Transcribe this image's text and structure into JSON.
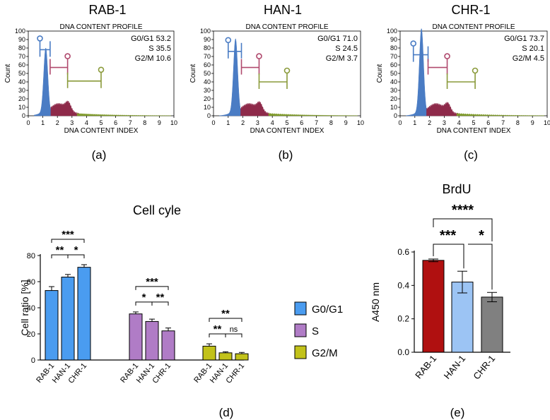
{
  "figure": {
    "labels": {
      "a": "(a)",
      "b": "(b)",
      "c": "(c)",
      "d": "(d)",
      "e": "(e)"
    },
    "colors": {
      "g0g1": "#4a7cc4",
      "s": "#8e2a4a",
      "g2m": "#7f9a2a",
      "gate_g0g1": "#4a7cc4",
      "gate_s": "#b04a6e",
      "gate_g2m": "#8a9a3a"
    }
  },
  "chart_data": [
    {
      "id": "a",
      "type": "area",
      "panel_title": "RAB-1",
      "title": "DNA CONTENT PROFILE",
      "xlabel": "DNA CONTENT INDEX",
      "ylabel": "Count",
      "xlim": [
        0,
        10
      ],
      "ylim": [
        0,
        100
      ],
      "xticks": [
        0,
        1,
        2,
        3,
        4,
        5,
        6,
        7,
        8,
        9,
        10
      ],
      "yticks": [
        0,
        10,
        20,
        30,
        40,
        50,
        60,
        70,
        80,
        90,
        100
      ],
      "stats": [
        "G0/G1 53.2",
        "S 35.5",
        "G2/M 10.6"
      ],
      "peak_g0g1": 76,
      "gates": [
        {
          "phase": "G0/G1",
          "x1": 0.8,
          "x2": 1.5,
          "y": 78
        },
        {
          "phase": "S",
          "x1": 1.5,
          "x2": 2.7,
          "y": 57
        },
        {
          "phase": "G2/M",
          "x1": 2.7,
          "x2": 5.0,
          "y": 41
        }
      ]
    },
    {
      "id": "b",
      "type": "area",
      "panel_title": "HAN-1",
      "title": "DNA CONTENT PROFILE",
      "xlabel": "DNA CONTENT INDEX",
      "ylabel": "Count",
      "xlim": [
        0,
        10
      ],
      "ylim": [
        0,
        100
      ],
      "xticks": [
        0,
        1,
        2,
        3,
        4,
        5,
        6,
        7,
        8,
        9,
        10
      ],
      "yticks": [
        0,
        10,
        20,
        30,
        40,
        50,
        60,
        70,
        80,
        90,
        100
      ],
      "stats": [
        "G0/G1 71.0",
        "S 24.5",
        "G2/M 3.7"
      ],
      "peak_g0g1": 87,
      "gates": [
        {
          "phase": "G0/G1",
          "x1": 1.0,
          "x2": 1.9,
          "y": 76
        },
        {
          "phase": "S",
          "x1": 1.9,
          "x2": 3.1,
          "y": 57
        },
        {
          "phase": "G2/M",
          "x1": 3.1,
          "x2": 5.0,
          "y": 40
        }
      ]
    },
    {
      "id": "c",
      "type": "area",
      "panel_title": "CHR-1",
      "title": "DNA CONTENT PROFILE",
      "xlabel": "DNA CONTENT INDEX",
      "ylabel": "Count",
      "xlim": [
        0,
        10
      ],
      "ylim": [
        0,
        100
      ],
      "xticks": [
        0,
        1,
        2,
        3,
        4,
        5,
        6,
        7,
        8,
        9,
        10
      ],
      "yticks": [
        0,
        10,
        20,
        30,
        40,
        50,
        60,
        70,
        80,
        90,
        100
      ],
      "stats": [
        "G0/G1 73.7",
        "S 20.1",
        "G2/M 4.5"
      ],
      "peak_g0g1": 99,
      "gates": [
        {
          "phase": "G0/G1",
          "x1": 0.9,
          "x2": 1.9,
          "y": 72
        },
        {
          "phase": "S",
          "x1": 1.9,
          "x2": 3.2,
          "y": 57
        },
        {
          "phase": "G2/M",
          "x1": 3.2,
          "x2": 5.1,
          "y": 40
        }
      ]
    },
    {
      "id": "d",
      "type": "bar",
      "title": "Cell cyle",
      "ylabel": "Cell ratio [%]",
      "ylim": [
        0,
        80
      ],
      "yticks": [
        0,
        20,
        40,
        60,
        80
      ],
      "categories": [
        "RAB-1",
        "HAN-1",
        "CHR-1"
      ],
      "series": [
        {
          "name": "G0/G1",
          "values": [
            53.2,
            63.5,
            71.0
          ],
          "errors": [
            3.0,
            2.0,
            2.0
          ],
          "color": "#4a9cf0"
        },
        {
          "name": "S",
          "values": [
            35.3,
            29.5,
            22.3
          ],
          "errors": [
            1.5,
            1.8,
            2.2
          ],
          "color": "#b07cc6"
        },
        {
          "name": "G2/M",
          "values": [
            10.6,
            5.5,
            4.8
          ],
          "errors": [
            1.8,
            0.8,
            1.0
          ],
          "color": "#c2c21a"
        }
      ],
      "legend": [
        "G0/G1",
        "S",
        "G2/M"
      ],
      "legend_position": "right",
      "significance": [
        {
          "group": 0,
          "from": 0,
          "to": 1,
          "label": "**",
          "level": 0
        },
        {
          "group": 0,
          "from": 1,
          "to": 2,
          "label": "*",
          "level": 0
        },
        {
          "group": 0,
          "from": 0,
          "to": 2,
          "label": "***",
          "level": 1
        },
        {
          "group": 1,
          "from": 0,
          "to": 1,
          "label": "*",
          "level": 0
        },
        {
          "group": 1,
          "from": 1,
          "to": 2,
          "label": "**",
          "level": 0
        },
        {
          "group": 1,
          "from": 0,
          "to": 2,
          "label": "***",
          "level": 1
        },
        {
          "group": 2,
          "from": 0,
          "to": 1,
          "label": "**",
          "level": 0
        },
        {
          "group": 2,
          "from": 1,
          "to": 2,
          "label": "ns",
          "level": 0
        },
        {
          "group": 2,
          "from": 0,
          "to": 2,
          "label": "**",
          "level": 1
        }
      ]
    },
    {
      "id": "e",
      "type": "bar",
      "title": "BrdU",
      "ylabel": "A450 nm",
      "ylim": [
        0,
        0.6
      ],
      "yticks": [
        0.0,
        0.2,
        0.4,
        0.6
      ],
      "ytick_labels": [
        "0.0",
        "0.2",
        "0.4",
        "0.6"
      ],
      "categories": [
        "RAB-1",
        "HAN-1",
        "CHR-1"
      ],
      "values": [
        0.55,
        0.42,
        0.33
      ],
      "errors": [
        0.008,
        0.065,
        0.028
      ],
      "colors": [
        "#b01010",
        "#9cc4f4",
        "#808080"
      ],
      "significance": [
        {
          "from": 0,
          "to": 1,
          "label": "***",
          "level": 0
        },
        {
          "from": 1,
          "to": 2,
          "label": "*",
          "level": 0
        },
        {
          "from": 0,
          "to": 2,
          "label": "****",
          "level": 1
        }
      ]
    }
  ]
}
